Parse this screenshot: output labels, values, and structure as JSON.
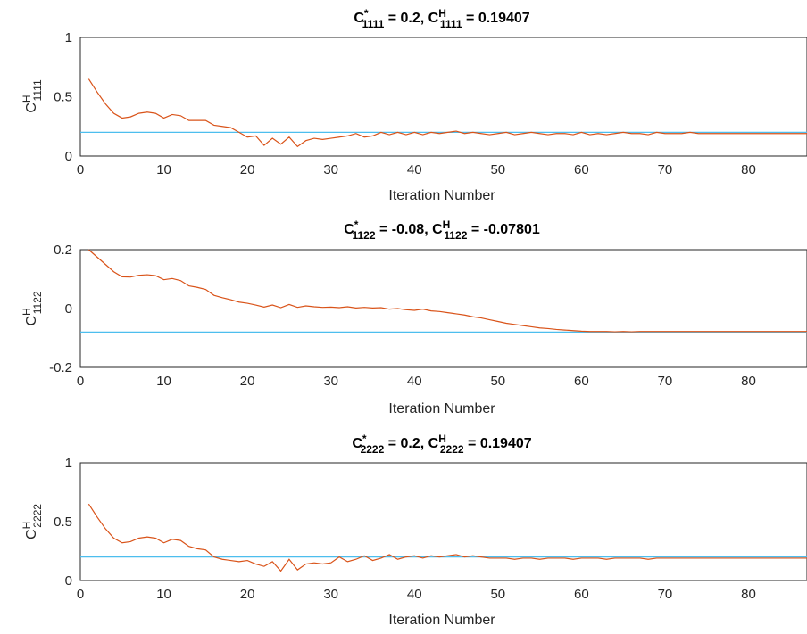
{
  "colors": {
    "target": "#4DBEEE",
    "estimate": "#D95319",
    "axis": "#262626"
  },
  "chart_data": [
    {
      "type": "line",
      "title_parts": [
        {
          "text": "C",
          "role": "base"
        },
        {
          "text": "*",
          "role": "sup"
        },
        {
          "text": "1111",
          "role": "sub"
        },
        {
          "text": " = 0.2, C",
          "role": "base"
        },
        {
          "text": "H",
          "role": "sup"
        },
        {
          "text": "1111",
          "role": "sub"
        },
        {
          "text": " = 0.19407",
          "role": "base"
        }
      ],
      "xlabel": "Iteration Number",
      "ylabel_parts": [
        {
          "text": "C",
          "role": "base"
        },
        {
          "text": "H",
          "role": "sup"
        },
        {
          "text": "1111",
          "role": "sub"
        }
      ],
      "xlim": [
        0,
        87
      ],
      "ylim": [
        0,
        1
      ],
      "xticks": [
        0,
        10,
        20,
        30,
        40,
        50,
        60,
        70,
        80
      ],
      "yticks": [
        0,
        0.5,
        1
      ],
      "grid": false,
      "series": [
        {
          "role": "target",
          "x": [
            0,
            87
          ],
          "values": [
            0.2,
            0.2
          ]
        },
        {
          "role": "estimate",
          "x": [
            1,
            2,
            3,
            4,
            5,
            6,
            7,
            8,
            9,
            10,
            11,
            12,
            13,
            14,
            15,
            16,
            17,
            18,
            19,
            20,
            21,
            22,
            23,
            24,
            25,
            26,
            27,
            28,
            29,
            30,
            31,
            32,
            33,
            34,
            35,
            36,
            37,
            38,
            39,
            40,
            41,
            42,
            43,
            44,
            45,
            46,
            47,
            48,
            49,
            50,
            51,
            52,
            53,
            54,
            55,
            56,
            57,
            58,
            59,
            60,
            61,
            62,
            63,
            64,
            65,
            66,
            67,
            68,
            69,
            70,
            71,
            72,
            73,
            74,
            75,
            76,
            77,
            78,
            79,
            80,
            81,
            82,
            83,
            84,
            85,
            86,
            87
          ],
          "values": [
            0.65,
            0.54,
            0.44,
            0.36,
            0.32,
            0.33,
            0.36,
            0.37,
            0.36,
            0.32,
            0.35,
            0.34,
            0.3,
            0.3,
            0.3,
            0.26,
            0.25,
            0.24,
            0.2,
            0.16,
            0.17,
            0.09,
            0.15,
            0.1,
            0.16,
            0.08,
            0.13,
            0.15,
            0.14,
            0.15,
            0.16,
            0.17,
            0.19,
            0.16,
            0.17,
            0.2,
            0.18,
            0.2,
            0.18,
            0.2,
            0.18,
            0.2,
            0.19,
            0.2,
            0.21,
            0.19,
            0.2,
            0.19,
            0.18,
            0.19,
            0.2,
            0.18,
            0.19,
            0.2,
            0.19,
            0.18,
            0.19,
            0.19,
            0.18,
            0.2,
            0.18,
            0.19,
            0.18,
            0.19,
            0.2,
            0.19,
            0.19,
            0.18,
            0.2,
            0.19,
            0.19,
            0.19,
            0.2,
            0.19,
            0.19,
            0.19,
            0.19,
            0.19,
            0.19,
            0.19,
            0.19,
            0.19,
            0.19,
            0.19,
            0.19,
            0.19,
            0.19
          ]
        }
      ]
    },
    {
      "type": "line",
      "title_parts": [
        {
          "text": "C",
          "role": "base"
        },
        {
          "text": "*",
          "role": "sup"
        },
        {
          "text": "1122",
          "role": "sub"
        },
        {
          "text": " = -0.08, C",
          "role": "base"
        },
        {
          "text": "H",
          "role": "sup"
        },
        {
          "text": "1122",
          "role": "sub"
        },
        {
          "text": " = -0.07801",
          "role": "base"
        }
      ],
      "xlabel": "Iteration Number",
      "ylabel_parts": [
        {
          "text": "C",
          "role": "base"
        },
        {
          "text": "H",
          "role": "sup"
        },
        {
          "text": "1122",
          "role": "sub"
        }
      ],
      "xlim": [
        0,
        87
      ],
      "ylim": [
        -0.2,
        0.2
      ],
      "xticks": [
        0,
        10,
        20,
        30,
        40,
        50,
        60,
        70,
        80
      ],
      "yticks": [
        -0.2,
        0,
        0.2
      ],
      "ytick_labels": [
        "-0.2",
        "0",
        "0.2"
      ],
      "grid": false,
      "series": [
        {
          "role": "target",
          "x": [
            0,
            87
          ],
          "values": [
            -0.08,
            -0.08
          ]
        },
        {
          "role": "estimate",
          "x": [
            1,
            2,
            3,
            4,
            5,
            6,
            7,
            8,
            9,
            10,
            11,
            12,
            13,
            14,
            15,
            16,
            17,
            18,
            19,
            20,
            21,
            22,
            23,
            24,
            25,
            26,
            27,
            28,
            29,
            30,
            31,
            32,
            33,
            34,
            35,
            36,
            37,
            38,
            39,
            40,
            41,
            42,
            43,
            44,
            45,
            46,
            47,
            48,
            49,
            50,
            51,
            52,
            53,
            54,
            55,
            56,
            57,
            58,
            59,
            60,
            61,
            62,
            63,
            64,
            65,
            66,
            67,
            68,
            69,
            70,
            71,
            72,
            73,
            74,
            75,
            76,
            77,
            78,
            79,
            80,
            81,
            82,
            83,
            84,
            85,
            86,
            87
          ],
          "values": [
            0.2,
            0.175,
            0.15,
            0.125,
            0.108,
            0.107,
            0.113,
            0.115,
            0.112,
            0.098,
            0.102,
            0.095,
            0.077,
            0.072,
            0.065,
            0.045,
            0.037,
            0.03,
            0.022,
            0.018,
            0.012,
            0.005,
            0.012,
            0.003,
            0.014,
            0.004,
            0.009,
            0.006,
            0.004,
            0.005,
            0.003,
            0.006,
            0.002,
            0.004,
            0.002,
            0.003,
            -0.002,
            0.0,
            -0.004,
            -0.006,
            -0.002,
            -0.008,
            -0.01,
            -0.014,
            -0.018,
            -0.022,
            -0.028,
            -0.032,
            -0.038,
            -0.044,
            -0.05,
            -0.054,
            -0.058,
            -0.062,
            -0.066,
            -0.068,
            -0.071,
            -0.073,
            -0.075,
            -0.077,
            -0.078,
            -0.078,
            -0.078,
            -0.079,
            -0.078,
            -0.079,
            -0.078,
            -0.078,
            -0.078,
            -0.078,
            -0.078,
            -0.078,
            -0.078,
            -0.078,
            -0.078,
            -0.078,
            -0.078,
            -0.078,
            -0.078,
            -0.078,
            -0.078,
            -0.078,
            -0.078,
            -0.078,
            -0.078,
            -0.078,
            -0.078
          ]
        }
      ]
    },
    {
      "type": "line",
      "title_parts": [
        {
          "text": "C",
          "role": "base"
        },
        {
          "text": "*",
          "role": "sup"
        },
        {
          "text": "2222",
          "role": "sub"
        },
        {
          "text": " = 0.2, C",
          "role": "base"
        },
        {
          "text": "H",
          "role": "sup"
        },
        {
          "text": "2222",
          "role": "sub"
        },
        {
          "text": " = 0.19407",
          "role": "base"
        }
      ],
      "xlabel": "Iteration Number",
      "ylabel_parts": [
        {
          "text": "C",
          "role": "base"
        },
        {
          "text": "H",
          "role": "sup"
        },
        {
          "text": "2222",
          "role": "sub"
        }
      ],
      "xlim": [
        0,
        87
      ],
      "ylim": [
        0,
        1
      ],
      "xticks": [
        0,
        10,
        20,
        30,
        40,
        50,
        60,
        70,
        80
      ],
      "yticks": [
        0,
        0.5,
        1
      ],
      "grid": false,
      "series": [
        {
          "role": "target",
          "x": [
            0,
            87
          ],
          "values": [
            0.2,
            0.2
          ]
        },
        {
          "role": "estimate",
          "x": [
            1,
            2,
            3,
            4,
            5,
            6,
            7,
            8,
            9,
            10,
            11,
            12,
            13,
            14,
            15,
            16,
            17,
            18,
            19,
            20,
            21,
            22,
            23,
            24,
            25,
            26,
            27,
            28,
            29,
            30,
            31,
            32,
            33,
            34,
            35,
            36,
            37,
            38,
            39,
            40,
            41,
            42,
            43,
            44,
            45,
            46,
            47,
            48,
            49,
            50,
            51,
            52,
            53,
            54,
            55,
            56,
            57,
            58,
            59,
            60,
            61,
            62,
            63,
            64,
            65,
            66,
            67,
            68,
            69,
            70,
            71,
            72,
            73,
            74,
            75,
            76,
            77,
            78,
            79,
            80,
            81,
            82,
            83,
            84,
            85,
            86,
            87
          ],
          "values": [
            0.65,
            0.54,
            0.44,
            0.36,
            0.32,
            0.33,
            0.36,
            0.37,
            0.36,
            0.32,
            0.35,
            0.34,
            0.29,
            0.27,
            0.26,
            0.2,
            0.18,
            0.17,
            0.16,
            0.17,
            0.14,
            0.12,
            0.16,
            0.08,
            0.18,
            0.09,
            0.14,
            0.15,
            0.14,
            0.15,
            0.2,
            0.16,
            0.18,
            0.21,
            0.17,
            0.19,
            0.22,
            0.18,
            0.2,
            0.21,
            0.19,
            0.21,
            0.2,
            0.21,
            0.22,
            0.2,
            0.21,
            0.2,
            0.19,
            0.19,
            0.19,
            0.18,
            0.19,
            0.19,
            0.18,
            0.19,
            0.19,
            0.19,
            0.18,
            0.19,
            0.19,
            0.19,
            0.18,
            0.19,
            0.19,
            0.19,
            0.19,
            0.18,
            0.19,
            0.19,
            0.19,
            0.19,
            0.19,
            0.19,
            0.19,
            0.19,
            0.19,
            0.19,
            0.19,
            0.19,
            0.19,
            0.19,
            0.19,
            0.19,
            0.19,
            0.19,
            0.19
          ]
        }
      ]
    }
  ]
}
